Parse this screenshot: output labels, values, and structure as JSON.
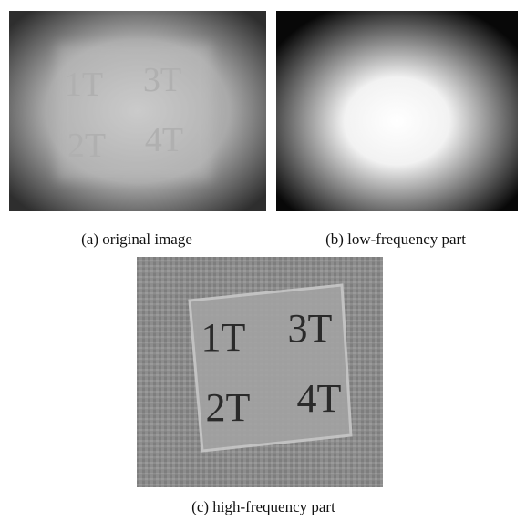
{
  "panels": [
    {
      "caption": "(a) original image",
      "labels": [
        "1T",
        "3T",
        "2T",
        "4T"
      ]
    },
    {
      "caption": "(b) low-frequency part"
    },
    {
      "caption": "(c) high-frequency part",
      "labels": [
        "1T",
        "3T",
        "2T",
        "4T"
      ]
    }
  ]
}
